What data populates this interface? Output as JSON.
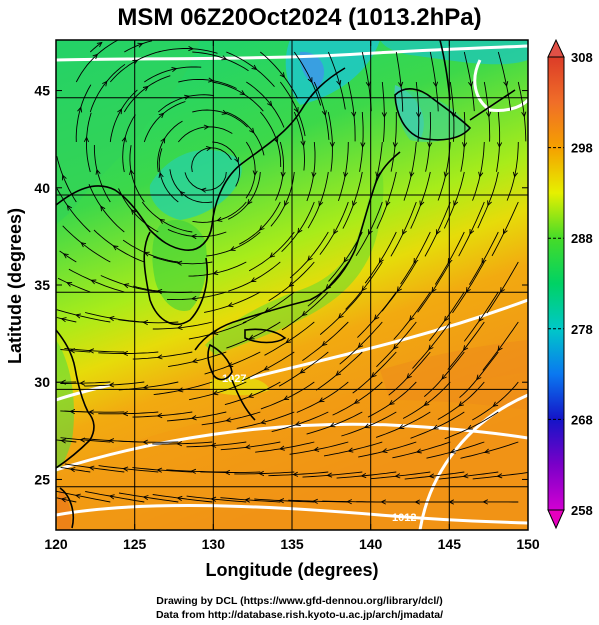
{
  "title": "MSM 06Z20Oct2024 (1013.2hPa)",
  "axes": {
    "xlabel": "Longitude (degrees)",
    "ylabel": "Latitude  (degrees)",
    "x_ticks": [
      "120",
      "125",
      "130",
      "135",
      "140",
      "145",
      "150"
    ],
    "y_ticks": [
      "25",
      "30",
      "35",
      "40",
      "45"
    ],
    "xlim": [
      120,
      150
    ],
    "ylim": [
      22.4,
      47.6
    ]
  },
  "colorbar": {
    "ticks": [
      "258",
      "268",
      "278",
      "288",
      "298",
      "308"
    ],
    "range": [
      258,
      308
    ],
    "colors": [
      "#d200d2",
      "#7a00c8",
      "#1010c8",
      "#0a78f0",
      "#00c8c8",
      "#00d264",
      "#32dc32",
      "#c8f000",
      "#f0d200",
      "#f5a000",
      "#f06e28",
      "#dc3c28"
    ]
  },
  "contour_labels": [
    "1027",
    "1012"
  ],
  "credits": [
    "Drawing by DCL (https://www.gfd-dennou.org/library/dcl/)",
    "Data from http://database.rish.kyoto-u.ac.jp/arch/jmadata/"
  ]
}
